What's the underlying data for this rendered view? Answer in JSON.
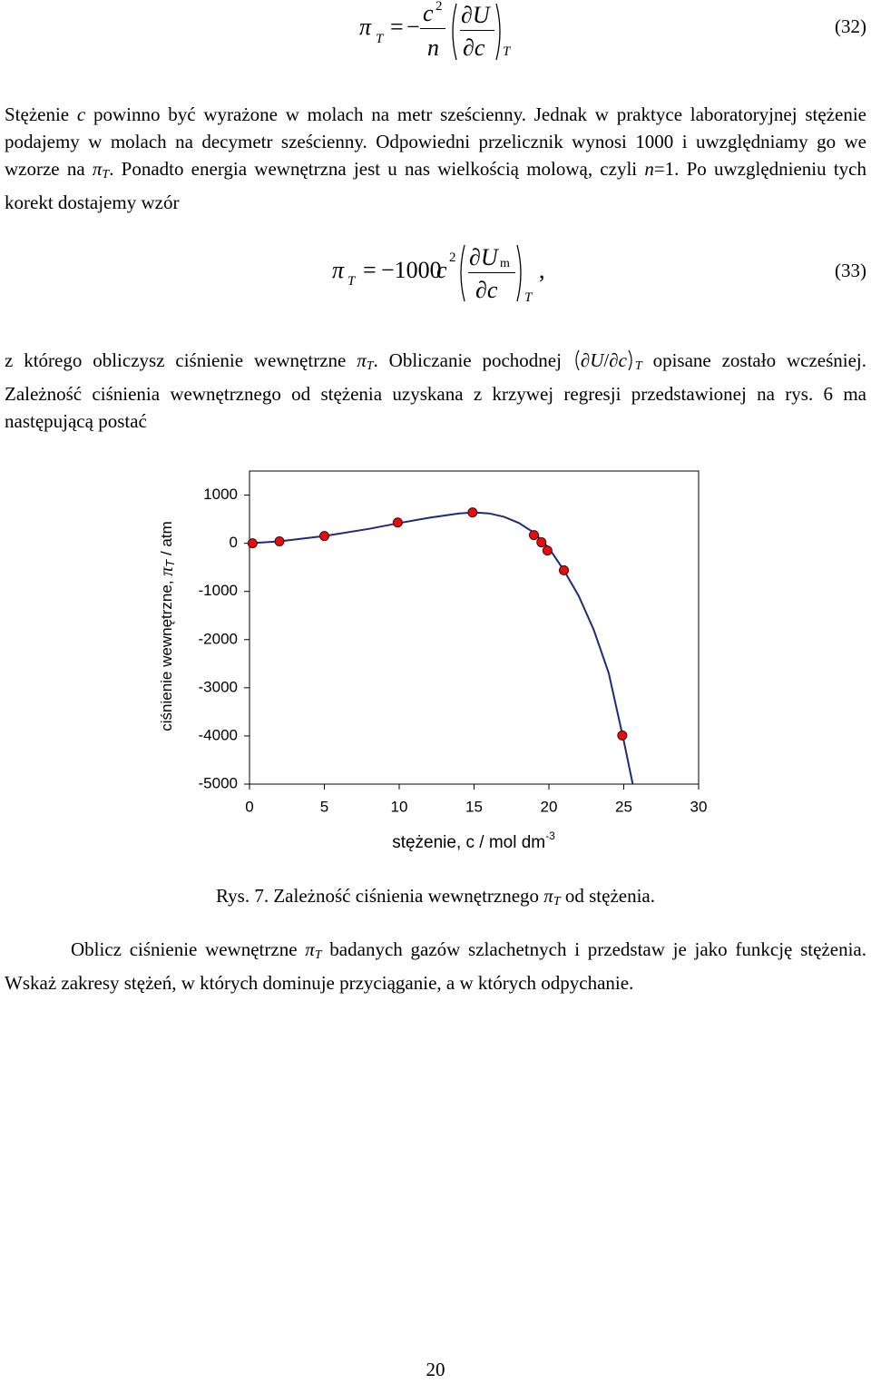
{
  "equation_32": {
    "lhs": "π",
    "lhs_sub": "T",
    "eq": "=",
    "minus": "−",
    "num": "c",
    "num_sup": "2",
    "den": "n",
    "d_num": "∂U",
    "d_den": "∂c",
    "d_sub": "T",
    "number": "(32)"
  },
  "paragraph_1": [
    "Stężenie ",
    "c",
    " powinno być wyrażone w molach na metr sześcienny. Jednak w praktyce laboratoryjnej stężenie podajemy w molach na decymetr sześcienny. Odpowiedni przelicznik wynosi 1000 i uwzględniamy go we wzorze na ",
    "π",
    "T",
    ". Ponadto energia wewnętrzna jest u nas wielkością molową, czyli ",
    "n",
    "=1. Po uwzględnieniu tych korekt dostajemy wzór"
  ],
  "equation_33": {
    "lhs": "π",
    "lhs_sub": "T",
    "eq": "=",
    "coef": "−1000",
    "var": "c",
    "var_sup": "2",
    "d_num": "∂U",
    "d_num_sub": "m",
    "d_den": "∂c",
    "d_sub": "T",
    "comma": ",",
    "number": "(33)"
  },
  "paragraph_2": [
    "z którego obliczysz ciśnienie wewnętrzne ",
    "π",
    "T",
    ". Obliczanie pochodnej ",
    "∂U",
    "/",
    "∂c",
    "T",
    " opisane zostało wcześniej. Zależność ciśnienia wewnętrznego od stężenia uzyskana z krzywej regresji przedstawionej na rys. 6 ma następującą postać"
  ],
  "chart_data": {
    "type": "scatter",
    "xlabel": [
      "stężenie, c / mol dm",
      "-3"
    ],
    "ylabel": [
      "ciśnienie wewnętrzne, ",
      "π",
      "T",
      " / atm"
    ],
    "xlim": [
      0,
      30
    ],
    "xticks": [
      0,
      5,
      10,
      15,
      20,
      25,
      30
    ],
    "ylim": [
      -5000,
      1500
    ],
    "yticks": [
      1000,
      0,
      -1000,
      -2000,
      -3000,
      -4000,
      -5000
    ],
    "grid": false,
    "series": [
      {
        "mode": "line",
        "color": "#1f2a78",
        "x": [
          0,
          2,
          5,
          8,
          10,
          12,
          14,
          15,
          16,
          17,
          18,
          19,
          20,
          21,
          22,
          23,
          24,
          25,
          25.6
        ],
        "values": [
          0,
          40,
          150,
          300,
          420,
          530,
          620,
          640,
          620,
          550,
          420,
          220,
          -100,
          -560,
          -1100,
          -1800,
          -2700,
          -4100,
          -5000
        ]
      },
      {
        "mode": "markers",
        "color": "#e01010",
        "x": [
          0.2,
          2.0,
          5.0,
          9.9,
          14.9,
          19.0,
          19.5,
          19.9,
          21.0,
          24.9
        ],
        "values": [
          0,
          40,
          150,
          430,
          640,
          170,
          20,
          -150,
          -560,
          -3990
        ]
      }
    ]
  },
  "caption": [
    "Rys. 7. Zależność ciśnienia wewnętrznego ",
    "π",
    "T",
    " od stężenia."
  ],
  "paragraph_3": [
    "Oblicz ciśnienie wewnętrzne ",
    "π",
    "T",
    " badanych gazów szlachetnych i przedstaw je jako funkcję stężenia. Wskaż zakresy stężeń, w których dominuje przyciąganie, a w których odpychanie."
  ],
  "page_number": "20"
}
